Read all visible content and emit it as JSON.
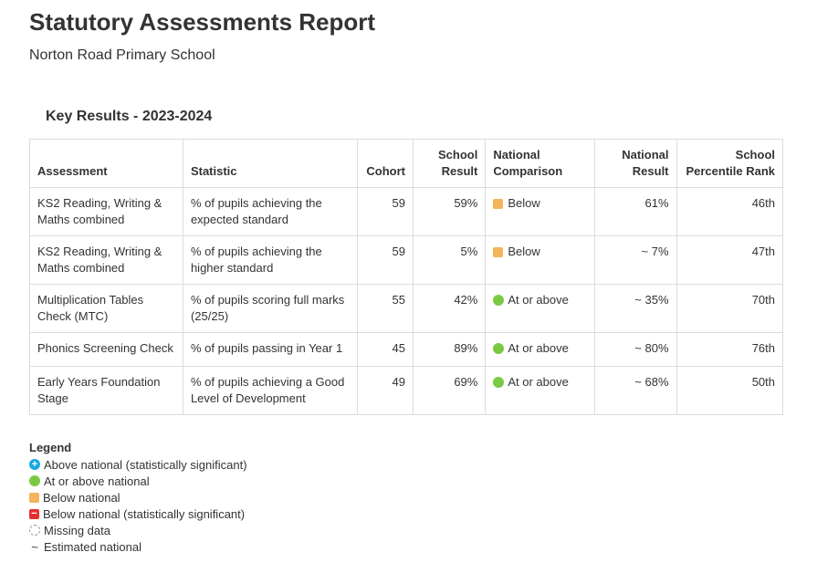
{
  "report": {
    "title": "Statutory Assessments Report",
    "school": "Norton Road Primary School",
    "section_title": "Key Results - 2023-2024"
  },
  "table": {
    "headers": {
      "assessment": "Assessment",
      "statistic": "Statistic",
      "cohort": "Cohort",
      "school_result_1": "School",
      "school_result_2": "Result",
      "national_comparison_1": "National",
      "national_comparison_2": "Comparison",
      "national_result_1": "National",
      "national_result_2": "Result",
      "percentile_1": "School",
      "percentile_2": "Percentile Rank"
    },
    "rows": [
      {
        "assessment_1": "KS2 Reading, Writing &",
        "assessment_2": "Maths combined",
        "statistic_1": "% of pupils achieving the",
        "statistic_2": "expected standard",
        "cohort": "59",
        "school_result": "59%",
        "comparison": "Below",
        "comparison_type": "below",
        "national_result": "61%",
        "percentile_rank": "46th"
      },
      {
        "assessment_1": "KS2 Reading, Writing &",
        "assessment_2": "Maths combined",
        "statistic_1": "% of pupils achieving the",
        "statistic_2": "higher standard",
        "cohort": "59",
        "school_result": "5%",
        "comparison": "Below",
        "comparison_type": "below",
        "national_result": "~ 7%",
        "percentile_rank": "47th"
      },
      {
        "assessment_1": "Multiplication Tables",
        "assessment_2": "Check (MTC)",
        "statistic_1": "% of pupils scoring full marks",
        "statistic_2": "(25/25)",
        "cohort": "55",
        "school_result": "42%",
        "comparison": "At or above",
        "comparison_type": "at-or-above",
        "national_result": "~ 35%",
        "percentile_rank": "70th"
      },
      {
        "assessment_1": "Phonics Screening Check",
        "assessment_2": "",
        "statistic_1": "% of pupils passing in Year 1",
        "statistic_2": "",
        "cohort": "45",
        "school_result": "89%",
        "comparison": "At or above",
        "comparison_type": "at-or-above",
        "national_result": "~ 80%",
        "percentile_rank": "76th"
      },
      {
        "assessment_1": "Early Years Foundation",
        "assessment_2": "Stage",
        "statistic_1": "% of pupils achieving a Good",
        "statistic_2": "Level of Development",
        "cohort": "49",
        "school_result": "69%",
        "comparison": "At or above",
        "comparison_type": "at-or-above",
        "national_result": "~ 68%",
        "percentile_rank": "50th"
      }
    ]
  },
  "legend": {
    "title": "Legend",
    "items": [
      {
        "icon": "plus-circle-icon",
        "label": "Above national (statistically significant)",
        "color": "#1ba6e3"
      },
      {
        "icon": "green-circle-icon",
        "label": "At or above national",
        "color": "#7ac943"
      },
      {
        "icon": "orange-square-icon",
        "label": "Below national",
        "color": "#f5b35a"
      },
      {
        "icon": "minus-square-icon",
        "label": "Below national (statistically significant)",
        "color": "#e53030"
      },
      {
        "icon": "dashed-circle-icon",
        "label": "Missing data",
        "color": "#999999"
      },
      {
        "icon": "tilde-icon",
        "label": "Estimated national",
        "symbol": "~"
      }
    ]
  }
}
